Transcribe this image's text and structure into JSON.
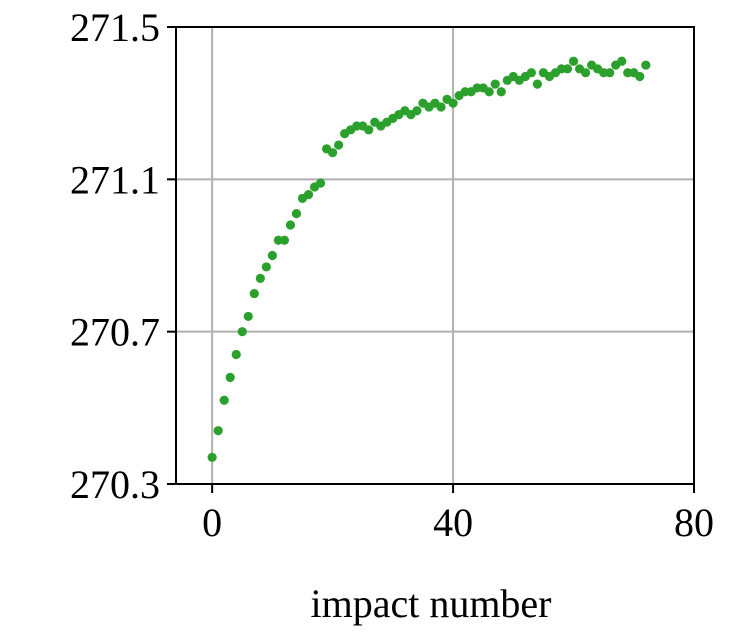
{
  "chart_data": {
    "type": "scatter",
    "title": "",
    "xlabel": "impact number",
    "ylabel": "",
    "xlim": [
      -6,
      80
    ],
    "ylim": [
      270.3,
      271.5
    ],
    "xticks": [
      0,
      40,
      80
    ],
    "xtick_labels": [
      "0",
      "40",
      "80"
    ],
    "yticks": [
      270.3,
      270.7,
      271.1,
      271.5
    ],
    "ytick_labels": [
      "270.3",
      "270.7",
      "271.1",
      "271.5"
    ],
    "grid": true,
    "series": [
      {
        "color": "#2ca02c",
        "x": [
          0,
          1,
          2,
          3,
          4,
          5,
          6,
          7,
          8,
          9,
          10,
          11,
          12,
          13,
          14,
          15,
          16,
          17,
          18,
          19,
          20,
          21,
          22,
          23,
          24,
          25,
          26,
          27,
          28,
          29,
          30,
          31,
          32,
          33,
          34,
          35,
          36,
          37,
          38,
          39,
          40,
          41,
          42,
          43,
          44,
          45,
          46,
          47,
          48,
          49,
          50,
          51,
          52,
          53,
          54,
          55,
          56,
          57,
          58,
          59,
          60,
          61,
          62,
          63,
          64,
          65,
          66,
          67,
          68,
          69,
          70,
          71,
          72
        ],
        "y": [
          270.37,
          270.44,
          270.52,
          270.58,
          270.64,
          270.7,
          270.74,
          270.8,
          270.84,
          270.87,
          270.9,
          270.94,
          270.94,
          270.98,
          271.01,
          271.05,
          271.06,
          271.08,
          271.09,
          271.18,
          271.17,
          271.19,
          271.22,
          271.23,
          271.24,
          271.24,
          271.23,
          271.25,
          271.24,
          271.25,
          271.26,
          271.27,
          271.28,
          271.27,
          271.28,
          271.3,
          271.29,
          271.3,
          271.29,
          271.31,
          271.3,
          271.32,
          271.33,
          271.33,
          271.34,
          271.34,
          271.33,
          271.35,
          271.33,
          271.36,
          271.37,
          271.36,
          271.37,
          271.38,
          271.35,
          271.38,
          271.37,
          271.38,
          271.39,
          271.39,
          271.41,
          271.39,
          271.38,
          271.4,
          271.39,
          271.38,
          271.38,
          271.4,
          271.41,
          271.38,
          271.38,
          271.37,
          271.4
        ]
      }
    ]
  }
}
